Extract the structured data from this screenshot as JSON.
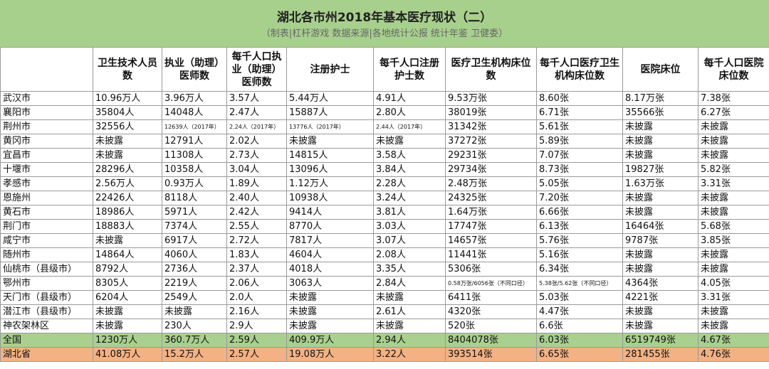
{
  "title": "湖北各市州2018年基本医疗现状（二）",
  "subtitle": "（制表|杠杆游戏 数据来源|各地统计公报 统计年鉴 卫健委）",
  "headers": [
    "",
    "卫生技术人员数",
    "执业（助理）医师数",
    "每千人口执业（助理）医师数",
    "注册护士",
    "每千人口注册护士数",
    "医疗卫生机构床位数",
    "每千人口医疗卫生机构床位数",
    "医院床位",
    "每千人口医院床位数"
  ],
  "rows": [
    [
      "武汉市",
      "10.96万人",
      "3.96万人",
      "3.57人",
      "5.44万人",
      "4.91人",
      "9.53万张",
      "8.60张",
      "8.17万张",
      "7.38张"
    ],
    [
      "襄阳市",
      "35804人",
      "14048人",
      "2.47人",
      "15887人",
      "2.80人",
      "38019张",
      "6.71张",
      "35566张",
      "6.27张"
    ],
    [
      "荆州市",
      "32556人",
      "12639人（2017年）",
      "2.24人（2017年）",
      "13776人（2017年）",
      "2.44人（2017年）",
      "31342张",
      "5.61张",
      "未披露",
      "未披露"
    ],
    [
      "黄冈市",
      "未披露",
      "12791人",
      "2.02人",
      "未披露",
      "未披露",
      "37272张",
      "5.89张",
      "未披露",
      "未披露"
    ],
    [
      "宜昌市",
      "未披露",
      "11308人",
      "2.73人",
      "14815人",
      "3.58人",
      "29231张",
      "7.07张",
      "未披露",
      "未披露"
    ],
    [
      "十堰市",
      "28296人",
      "10358人",
      "3.04人",
      "13096人",
      "3.84人",
      "29734张",
      "8.73张",
      "19827张",
      "5.82张"
    ],
    [
      "孝感市",
      "2.56万人",
      "0.93万人",
      "1.89人",
      "1.12万人",
      "2.28人",
      "2.48万张",
      "5.05张",
      "1.63万张",
      "3.31张"
    ],
    [
      "恩施州",
      "22426人",
      "8118人",
      "2.40人",
      "10938人",
      "3.24人",
      "24325张",
      "7.20张",
      "未披露",
      "未披露"
    ],
    [
      "黄石市",
      "18986人",
      "5971人",
      "2.42人",
      "9414人",
      "3.81人",
      "1.64万张",
      "6.66张",
      "未披露",
      "未披露"
    ],
    [
      "荆门市",
      "18883人",
      "7374人",
      "2.55人",
      "8770人",
      "3.03人",
      "17747张",
      "6.13张",
      "16464张",
      "5.68张"
    ],
    [
      "咸宁市",
      "未披露",
      "6917人",
      "2.72人",
      "7817人",
      "3.07人",
      "14657张",
      "5.76张",
      "9787张",
      "3.85张"
    ],
    [
      "随州市",
      "14864人",
      "4060人",
      "1.83人",
      "4604人",
      "2.08人",
      "11441张",
      "5.16张",
      "未披露",
      "未披露"
    ],
    [
      "仙桃市（县级市）",
      "8792人",
      "2736人",
      "2.37人",
      "4018人",
      "3.35人",
      "5306张",
      "6.34张",
      "未披露",
      "未披露"
    ],
    [
      "鄂州市",
      "8305人",
      "2219人",
      "2.06人",
      "3063人",
      "2.84人",
      "0.58万张/6056张（不同口径）",
      "5.38张/5.62张（不同口径）",
      "4364张",
      "4.05张"
    ],
    [
      "天门市（县级市）",
      "6204人",
      "2549人",
      "2.0人",
      "未披露",
      "未披露",
      "6411张",
      "5.03张",
      "4221张",
      "3.31张"
    ],
    [
      "潜江市（县级市）",
      "未披露",
      "未披露",
      "2.16人",
      "未披露",
      "2.61人",
      "4320张",
      "4.47张",
      "未披露",
      "未披露"
    ],
    [
      "神农架林区",
      "未披露",
      "230人",
      "2.9人",
      "未披露",
      "未披露",
      "520张",
      "6.6张",
      "未披露",
      "未披露"
    ]
  ],
  "national": [
    "全国",
    "1230万人",
    "360.7万人",
    "2.59人",
    "409.9万人",
    "2.94人",
    "8404078张",
    "6.03张",
    "6519749张",
    "4.67张"
  ],
  "province": [
    "湖北省",
    "41.08万人",
    "15.2万人",
    "2.57人",
    "19.08万人",
    "3.22人",
    "393514张",
    "6.65张",
    "281455张",
    "4.76张"
  ],
  "colors": {
    "title_bg": "#a8d08d",
    "national_bg": "#a9d08e",
    "province_bg": "#f4b183",
    "grid": "#9a9a9a"
  }
}
